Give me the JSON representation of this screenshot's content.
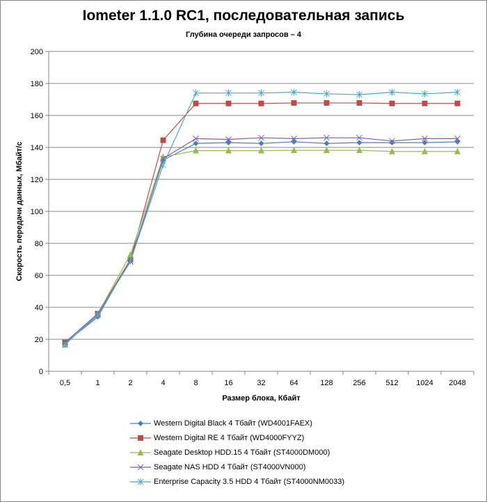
{
  "chart_data": {
    "type": "line",
    "title": "Iometer 1.1.0 RC1, последовательная запись",
    "subtitle": "Глубина очереди запросов – 4",
    "xlabel": "Размер блока, Кбайт",
    "ylabel": "Скорость передачи данных, Мбайт/с",
    "ylim": [
      0,
      200
    ],
    "yticks": [
      0,
      20,
      40,
      60,
      80,
      100,
      120,
      140,
      160,
      180,
      200
    ],
    "grid": true,
    "legend_position": "bottom",
    "categories": [
      "0,5",
      "1",
      "2",
      "4",
      "8",
      "16",
      "32",
      "64",
      "128",
      "256",
      "512",
      "1024",
      "2048"
    ],
    "series": [
      {
        "name": "Western Digital Black 4 Тбайт (WD4001FAEX)",
        "color": "#4a7ebb",
        "marker": "diamond",
        "values": [
          17.5,
          34,
          70,
          132,
          142.5,
          143,
          142.5,
          143.5,
          142.5,
          143,
          143,
          143,
          143.5
        ]
      },
      {
        "name": "Western Digital RE 4 Тбайт (WD4000FYYZ)",
        "color": "#be4b48",
        "marker": "square",
        "values": [
          18,
          36,
          70,
          144.5,
          167.5,
          167.5,
          167.5,
          167.8,
          167.8,
          167.8,
          167.5,
          167.5,
          167.5
        ]
      },
      {
        "name": "Seagate Desktop HDD.15 4 Тбайт (ST4000DM000)",
        "color": "#98b954",
        "marker": "triangle",
        "values": [
          16.5,
          36,
          73,
          134,
          138,
          138,
          138,
          138.2,
          138.2,
          138.2,
          137.5,
          137.5,
          137.5
        ]
      },
      {
        "name": "Seagate NAS HDD 4 Тбайт (ST4000VN000)",
        "color": "#7d60a0",
        "marker": "x",
        "values": [
          18,
          36,
          68.5,
          133,
          145.5,
          145,
          146,
          145.5,
          146,
          146,
          144,
          145.5,
          145.5
        ]
      },
      {
        "name": "Enterprise Capacity 3.5 HDD 4 Тбайт (ST4000NM0033)",
        "color": "#46aac5",
        "marker": "star",
        "values": [
          17,
          35,
          69,
          129,
          174,
          174,
          174,
          174.5,
          173.5,
          173,
          174.5,
          173.5,
          174.5
        ]
      }
    ]
  }
}
